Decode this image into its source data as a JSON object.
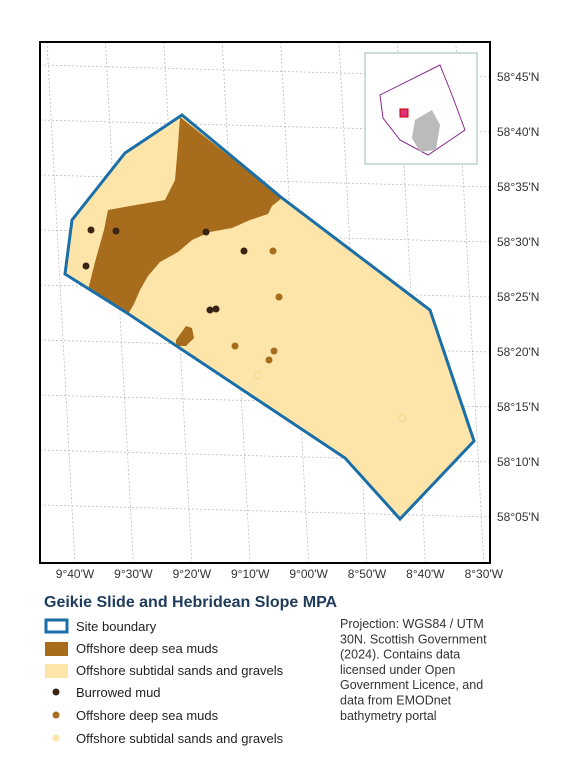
{
  "map": {
    "title": "Geikie Slide and Hebridean Slope MPA",
    "latitude_labels": [
      "58°45'N",
      "58°40'N",
      "58°35'N",
      "58°30'N",
      "58°25'N",
      "58°20'N",
      "58°15'N",
      "58°10'N",
      "58°05'N"
    ],
    "longitude_labels": [
      "9°40'W",
      "9°30'W",
      "9°20'W",
      "9°10'W",
      "9°00'W",
      "8°50'W",
      "8°40'W",
      "8°30'W"
    ],
    "legend": [
      "Site boundary",
      "Offshore deep sea muds",
      "Offshore subtidal sands and gravels",
      "Burrowed mud",
      "Offshore deep sea muds",
      "Offshore subtidal sands and gravels"
    ],
    "note": [
      "Projection: WGS84 / UTM",
      "30N. Scottish Government",
      "(2024). Contains data",
      "licensed under Open",
      "Government Licence, and",
      "data from EMODnet",
      "bathymetry portal"
    ]
  }
}
